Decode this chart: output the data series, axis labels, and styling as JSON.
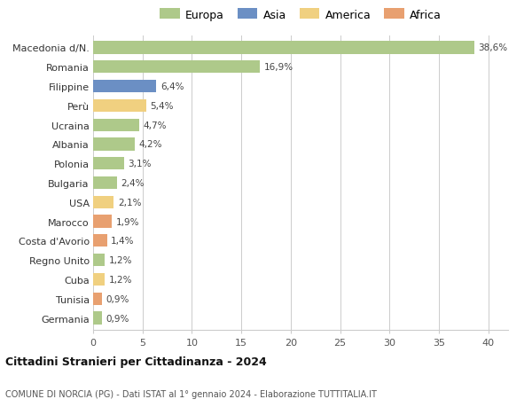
{
  "countries": [
    "Macedonia d/N.",
    "Romania",
    "Filippine",
    "Perù",
    "Ucraina",
    "Albania",
    "Polonia",
    "Bulgaria",
    "USA",
    "Marocco",
    "Costa d'Avorio",
    "Regno Unito",
    "Cuba",
    "Tunisia",
    "Germania"
  ],
  "values": [
    38.6,
    16.9,
    6.4,
    5.4,
    4.7,
    4.2,
    3.1,
    2.4,
    2.1,
    1.9,
    1.4,
    1.2,
    1.2,
    0.9,
    0.9
  ],
  "labels": [
    "38,6%",
    "16,9%",
    "6,4%",
    "5,4%",
    "4,7%",
    "4,2%",
    "3,1%",
    "2,4%",
    "2,1%",
    "1,9%",
    "1,4%",
    "1,2%",
    "1,2%",
    "0,9%",
    "0,9%"
  ],
  "categories": [
    "Europa",
    "Europa",
    "Asia",
    "America",
    "Europa",
    "Europa",
    "Europa",
    "Europa",
    "America",
    "Africa",
    "Africa",
    "Europa",
    "America",
    "Africa",
    "Europa"
  ],
  "colors": {
    "Europa": "#aec98a",
    "Asia": "#6b8fc4",
    "America": "#f0d080",
    "Africa": "#e8a070"
  },
  "legend_order": [
    "Europa",
    "Asia",
    "America",
    "Africa"
  ],
  "title_bold": "Cittadini Stranieri per Cittadinanza - 2024",
  "subtitle": "COMUNE DI NORCIA (PG) - Dati ISTAT al 1° gennaio 2024 - Elaborazione TUTTITALIA.IT",
  "xlim": [
    0,
    42
  ],
  "xticks": [
    0,
    5,
    10,
    15,
    20,
    25,
    30,
    35,
    40
  ],
  "background_color": "#ffffff",
  "grid_color": "#cccccc"
}
